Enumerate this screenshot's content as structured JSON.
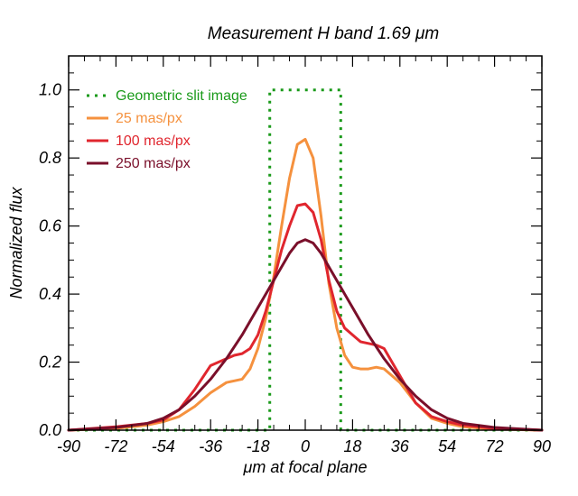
{
  "chart_data": {
    "type": "line",
    "title": "Measurement   H band    1.69 μm",
    "xlabel": "μm at focal plane",
    "ylabel": "Normalized flux",
    "xlim": [
      -90,
      90
    ],
    "ylim": [
      0,
      1.1
    ],
    "x_ticks": [
      -90,
      -72,
      -54,
      -36,
      -18,
      0,
      18,
      36,
      54,
      72,
      90
    ],
    "x_tick_labels": [
      "-90",
      "-72",
      "-54",
      "-36",
      "-18",
      "0",
      "18",
      "36",
      "54",
      "72",
      "90"
    ],
    "y_ticks": [
      0,
      0.2,
      0.4,
      0.6,
      0.8,
      1.0
    ],
    "y_tick_labels": [
      "0.0",
      "0.2",
      "0.4",
      "0.6",
      "0.8",
      "1.0"
    ],
    "legend_position": "top-left",
    "series": [
      {
        "name": "Geometric slit image",
        "color": "#1a9a1a",
        "dash": "dotted",
        "x": [
          -90,
          -13.5,
          -13.5,
          13.5,
          13.5,
          90
        ],
        "y": [
          0,
          0,
          1.0,
          1.0,
          0,
          0
        ]
      },
      {
        "name": "25 mas/px",
        "color": "#f5913e",
        "dash": "solid",
        "x": [
          -90,
          -72,
          -60,
          -54,
          -48,
          -42,
          -36,
          -30,
          -27,
          -24,
          -21,
          -18,
          -15,
          -12,
          -9,
          -6,
          -3,
          0,
          3,
          6,
          9,
          12,
          15,
          18,
          21,
          24,
          27,
          30,
          36,
          42,
          48,
          54,
          60,
          72,
          90
        ],
        "y": [
          0,
          0.005,
          0.015,
          0.025,
          0.04,
          0.07,
          0.11,
          0.14,
          0.145,
          0.15,
          0.18,
          0.24,
          0.33,
          0.45,
          0.6,
          0.74,
          0.84,
          0.855,
          0.8,
          0.63,
          0.43,
          0.3,
          0.22,
          0.185,
          0.18,
          0.18,
          0.185,
          0.18,
          0.14,
          0.08,
          0.035,
          0.02,
          0.01,
          0.003,
          0
        ]
      },
      {
        "name": "100 mas/px",
        "color": "#e0262e",
        "dash": "solid",
        "x": [
          -90,
          -72,
          -60,
          -54,
          -48,
          -42,
          -36,
          -30,
          -27,
          -24,
          -21,
          -18,
          -15,
          -12,
          -9,
          -6,
          -3,
          0,
          3,
          6,
          9,
          12,
          15,
          18,
          21,
          24,
          27,
          30,
          36,
          42,
          48,
          54,
          60,
          72,
          90
        ],
        "y": [
          0,
          0.01,
          0.02,
          0.03,
          0.06,
          0.12,
          0.19,
          0.21,
          0.22,
          0.225,
          0.24,
          0.28,
          0.35,
          0.44,
          0.53,
          0.6,
          0.66,
          0.665,
          0.64,
          0.56,
          0.44,
          0.35,
          0.3,
          0.28,
          0.26,
          0.255,
          0.25,
          0.24,
          0.16,
          0.08,
          0.04,
          0.025,
          0.015,
          0.005,
          0
        ]
      },
      {
        "name": "250 mas/px",
        "color": "#7a0f2a",
        "dash": "solid",
        "x": [
          -90,
          -72,
          -60,
          -54,
          -48,
          -42,
          -36,
          -30,
          -24,
          -18,
          -12,
          -6,
          -3,
          0,
          3,
          6,
          12,
          18,
          24,
          30,
          36,
          42,
          48,
          54,
          60,
          72,
          90
        ],
        "y": [
          0,
          0.008,
          0.02,
          0.035,
          0.06,
          0.1,
          0.15,
          0.21,
          0.28,
          0.36,
          0.44,
          0.52,
          0.55,
          0.56,
          0.55,
          0.52,
          0.44,
          0.36,
          0.28,
          0.21,
          0.15,
          0.1,
          0.06,
          0.035,
          0.02,
          0.008,
          0
        ]
      }
    ]
  }
}
